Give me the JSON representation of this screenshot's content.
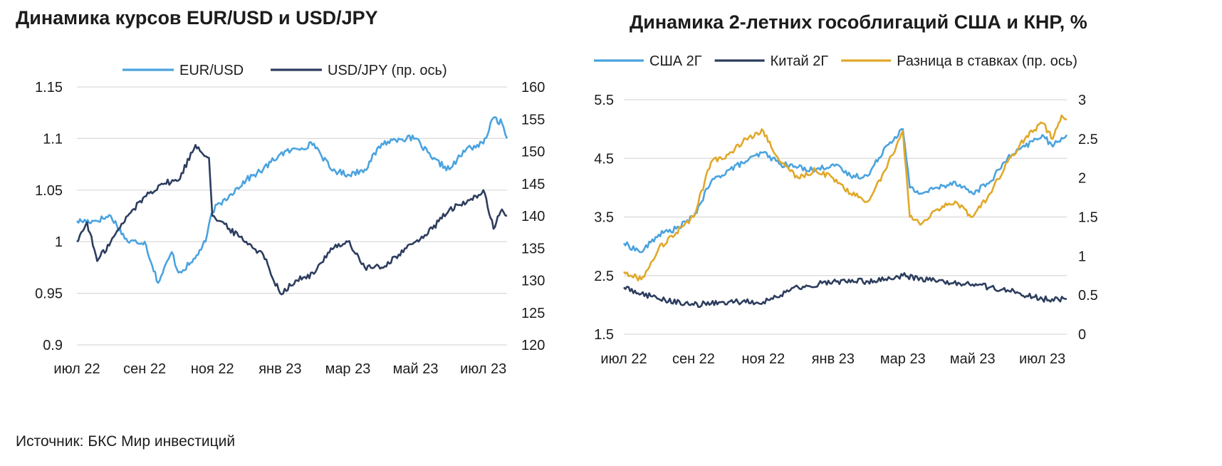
{
  "source": "Источник: БКС Мир инвестиций",
  "chart_data": [
    {
      "type": "line",
      "title": "Динамика курсов EUR/USD и USD/JPY",
      "x_axis": {
        "ticks": [
          "2022-07",
          "2022-09",
          "2022-11",
          "2023-01",
          "2023-03",
          "2023-05",
          "2023-07"
        ],
        "tick_labels": [
          "июл 22",
          "сен 22",
          "ноя 22",
          "янв 23",
          "мар 23",
          "май 23",
          "июл 23"
        ],
        "range": [
          "2022-07",
          "2023-07.7"
        ]
      },
      "y_left": {
        "range": [
          0.9,
          1.15
        ],
        "ticks": [
          "0.9",
          "0.95",
          "1",
          "1.05",
          "1.1",
          "1.15"
        ]
      },
      "y_right": {
        "range": [
          120,
          160
        ],
        "ticks": [
          "120",
          "125",
          "130",
          "135",
          "140",
          "145",
          "150",
          "155",
          "160"
        ]
      },
      "grid": true,
      "legend_position": "top",
      "series": [
        {
          "name": "EUR/USD",
          "axis": "left",
          "color": "#4aa3df",
          "x": [
            "2022-07",
            "2022-07.5",
            "2022-08",
            "2022-08.5",
            "2022-09",
            "2022-09.4",
            "2022-09.8",
            "2022-10",
            "2022-10.4",
            "2022-10.8",
            "2022-11",
            "2022-11.5",
            "2022-12",
            "2022-12.5",
            "2023-01",
            "2023-01.5",
            "2023-02",
            "2023-02.5",
            "2023-03",
            "2023-03.5",
            "2023-04",
            "2023-04.5",
            "2023-05",
            "2023-05.5",
            "2023-06",
            "2023-06.5",
            "2023-07",
            "2023-07.3",
            "2023-07.55",
            "2023-07.7"
          ],
          "values": [
            1.02,
            1.02,
            1.025,
            1.0,
            1.0,
            0.96,
            0.99,
            0.97,
            0.98,
            1.0,
            1.03,
            1.045,
            1.06,
            1.07,
            1.085,
            1.09,
            1.095,
            1.07,
            1.065,
            1.07,
            1.095,
            1.1,
            1.1,
            1.08,
            1.07,
            1.09,
            1.095,
            1.12,
            1.115,
            1.1
          ]
        },
        {
          "name": "USD/JPY (пр. ось)",
          "axis": "right",
          "color": "#2d3d5e",
          "x": [
            "2022-07",
            "2022-07.3",
            "2022-07.6",
            "2022-08",
            "2022-08.5",
            "2022-09",
            "2022-09.5",
            "2022-10",
            "2022-10.5",
            "2022-10.9",
            "2022-11",
            "2022-11.5",
            "2022-12",
            "2022-12.5",
            "2023-01",
            "2023-01.5",
            "2023-02",
            "2023-02.5",
            "2023-03",
            "2023-03.5",
            "2023-04",
            "2023-04.5",
            "2023-05",
            "2023-05.5",
            "2023-06",
            "2023-06.5",
            "2023-07",
            "2023-07.3",
            "2023-07.55",
            "2023-07.7"
          ],
          "values": [
            136,
            139,
            133,
            136,
            140,
            143,
            145,
            145.5,
            151,
            149,
            140,
            138,
            136,
            134,
            128,
            130,
            131,
            135,
            136,
            132,
            132,
            134,
            136,
            138,
            141,
            142,
            144,
            138,
            141,
            140
          ]
        }
      ]
    },
    {
      "type": "line",
      "title": "Динамика 2-летних гособлигаций США и КНР, %",
      "x_axis": {
        "ticks": [
          "2022-07",
          "2022-09",
          "2022-11",
          "2023-01",
          "2023-03",
          "2023-05",
          "2023-07"
        ],
        "tick_labels": [
          "июл 22",
          "сен 22",
          "ноя 22",
          "янв 23",
          "мар 23",
          "май 23",
          "июл 23"
        ],
        "range": [
          "2022-07",
          "2023-07.7"
        ]
      },
      "y_left": {
        "range": [
          1.5,
          5.5
        ],
        "ticks": [
          "1.5",
          "2.5",
          "3.5",
          "4.5",
          "5.5"
        ]
      },
      "y_right": {
        "range": [
          0,
          3
        ],
        "ticks": [
          "0",
          "0.5",
          "1",
          "1.5",
          "2",
          "2.5",
          "3"
        ]
      },
      "grid": true,
      "legend_position": "top",
      "series": [
        {
          "name": "США 2Г",
          "axis": "left",
          "color": "#4aa3df",
          "x": [
            "2022-07",
            "2022-07.5",
            "2022-08",
            "2022-08.5",
            "2022-09",
            "2022-09.5",
            "2022-10",
            "2022-10.5",
            "2022-11",
            "2022-11.5",
            "2022-12",
            "2022-12.5",
            "2023-01",
            "2023-01.5",
            "2023-02",
            "2023-02.5",
            "2023-03",
            "2023-03.2",
            "2023-03.5",
            "2023-04",
            "2023-04.5",
            "2023-05",
            "2023-05.5",
            "2023-06",
            "2023-06.5",
            "2023-07",
            "2023-07.3",
            "2023-07.55",
            "2023-07.7"
          ],
          "values": [
            3.05,
            2.9,
            3.2,
            3.3,
            3.5,
            4.1,
            4.3,
            4.45,
            4.6,
            4.4,
            4.35,
            4.3,
            4.4,
            4.2,
            4.2,
            4.7,
            5.0,
            4.0,
            3.9,
            4.0,
            4.1,
            3.9,
            4.1,
            4.5,
            4.7,
            4.9,
            4.7,
            4.85,
            4.9
          ]
        },
        {
          "name": "Китай 2Г",
          "axis": "left",
          "color": "#2d3d5e",
          "x": [
            "2022-07",
            "2022-08",
            "2022-09",
            "2022-10",
            "2022-11",
            "2022-12",
            "2023-01",
            "2023-02",
            "2023-03",
            "2023-04",
            "2023-05",
            "2023-06",
            "2023-07",
            "2023-07.7"
          ],
          "values": [
            2.3,
            2.1,
            2.0,
            2.05,
            2.05,
            2.3,
            2.4,
            2.4,
            2.5,
            2.4,
            2.35,
            2.25,
            2.1,
            2.1
          ]
        },
        {
          "name": "Разница в ставках (пр. ось)",
          "axis": "right",
          "color": "#e0a829",
          "x": [
            "2022-07",
            "2022-07.5",
            "2022-08",
            "2022-08.5",
            "2022-09",
            "2022-09.5",
            "2022-10",
            "2022-10.5",
            "2022-11",
            "2022-11.5",
            "2022-12",
            "2022-12.5",
            "2023-01",
            "2023-01.5",
            "2023-02",
            "2023-02.5",
            "2023-03",
            "2023-03.2",
            "2023-03.5",
            "2023-04",
            "2023-04.5",
            "2023-05",
            "2023-05.5",
            "2023-06",
            "2023-06.5",
            "2023-07",
            "2023-07.3",
            "2023-07.55",
            "2023-07.7"
          ],
          "values": [
            0.8,
            0.7,
            1.1,
            1.3,
            1.5,
            2.2,
            2.3,
            2.5,
            2.6,
            2.2,
            2.0,
            2.1,
            2.0,
            1.8,
            1.7,
            2.1,
            2.6,
            1.5,
            1.4,
            1.6,
            1.7,
            1.5,
            1.8,
            2.2,
            2.5,
            2.7,
            2.5,
            2.8,
            2.75
          ]
        }
      ]
    }
  ]
}
